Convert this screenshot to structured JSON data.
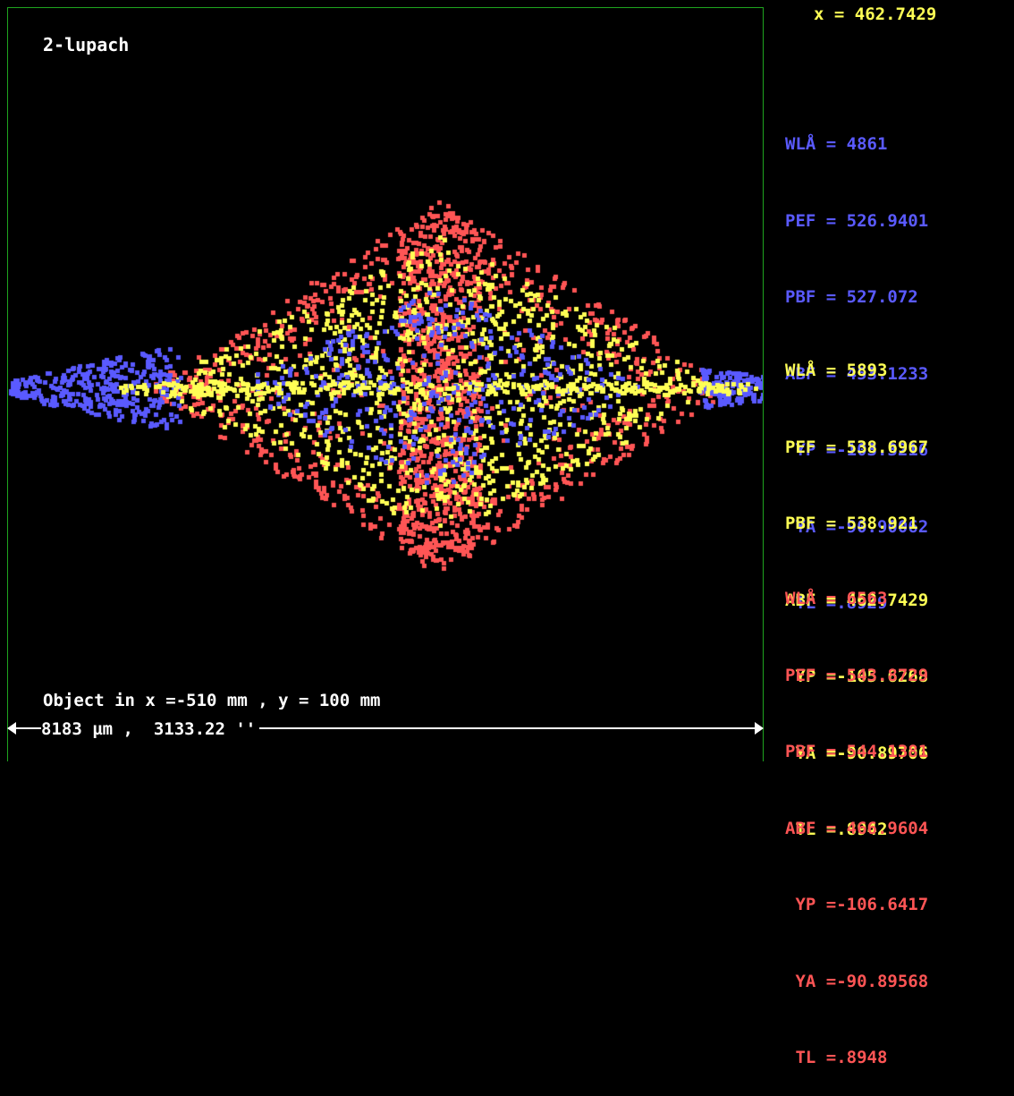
{
  "title": "2-lupach",
  "current_x": "x = 462.7429",
  "colors": {
    "blue": "#5a5aff",
    "yellow": "#ffff55",
    "red": "#ff5555",
    "white": "#ffffff",
    "frame": "#1fa51f"
  },
  "caption": "Object in x =-510 mm , y = 100 mm",
  "scale": {
    "text": "8183 µm ,  3133.22 ''"
  },
  "wavelength_blocks": [
    {
      "color": "#5a5aff",
      "lines": [
        "WLÅ = 4861",
        "PEF = 526.9401",
        "PBF = 527.072",
        "ABF = 453.1233",
        " YP =-103.3216",
        " YA =-90.90062",
        " TL =.8929"
      ]
    },
    {
      "color": "#ffff55",
      "lines": [
        "WLÅ = 5893",
        "PEF = 538.6967",
        "PBF = 538.921",
        "ABF = 462.7429",
        " YP =-105.6268",
        " YA =-90.89706",
        " TL =.8942"
      ]
    },
    {
      "color": "#ff5555",
      "lines": [
        "WLÅ = 6563",
        "PEF = 543.8729",
        "PBF = 544.1381",
        "ABF = 466.9604",
        " YP =-106.6417",
        " YA =-90.89568",
        " TL =.8948"
      ]
    }
  ]
}
